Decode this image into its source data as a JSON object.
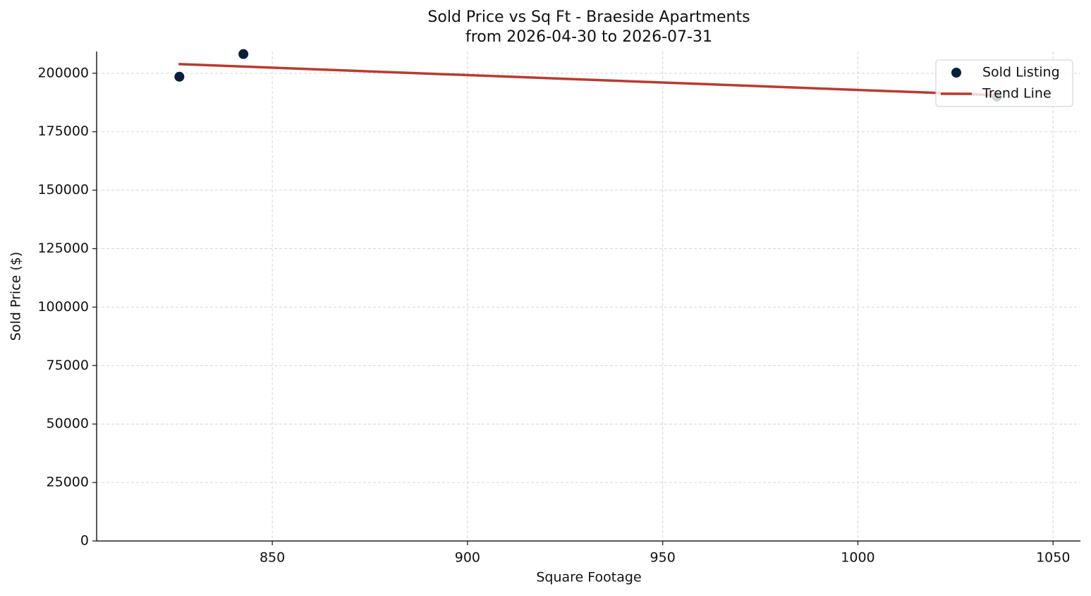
{
  "chart_data": {
    "type": "scatter",
    "title": "Sold Price vs Sq Ft - Braeside Apartments",
    "subtitle": "from 2026-04-30 to 2026-07-31",
    "x_label": "Square Footage",
    "y_label": "Sold Price ($)",
    "xlim": [
      805,
      1057
    ],
    "ylim": [
      0,
      209300
    ],
    "xticks": [
      850,
      900,
      950,
      1000,
      1050
    ],
    "yticks": [
      0,
      25000,
      50000,
      75000,
      100000,
      125000,
      150000,
      175000,
      200000
    ],
    "grid": true,
    "legend": "upper right",
    "series": [
      {
        "name": "Sold Listing",
        "mark": "point",
        "color": "#0b1f3a",
        "x": [
          826.2,
          842.6,
          1035.6
        ],
        "values": [
          198500,
          208200,
          190000
        ]
      },
      {
        "name": "Trend Line",
        "mark": "line",
        "color": "#b83c30",
        "x": [
          826,
          1035.6
        ],
        "values": [
          203900,
          190600
        ]
      }
    ]
  }
}
